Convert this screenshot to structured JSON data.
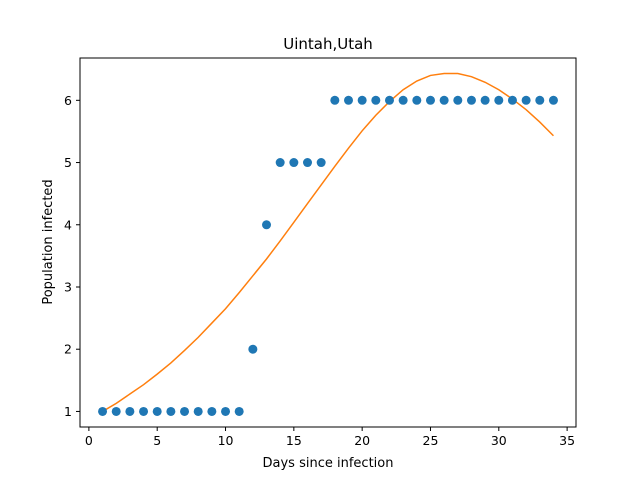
{
  "chart_data": {
    "type": "scatter",
    "title": "Uintah,Utah",
    "xlabel": "Days since infection",
    "ylabel": "Population infected",
    "xlim": [
      -0.65,
      35.65
    ],
    "ylim": [
      0.75,
      6.68
    ],
    "xticks": [
      0,
      5,
      10,
      15,
      20,
      25,
      30,
      35
    ],
    "yticks": [
      1,
      2,
      3,
      4,
      5,
      6
    ],
    "grid": false,
    "legend": "none",
    "colors": {
      "points": "#1f77b4",
      "fit": "#ff7f0e"
    },
    "series": [
      {
        "type": "scatter",
        "x": [
          1,
          2,
          3,
          4,
          5,
          6,
          7,
          8,
          9,
          10,
          11,
          12,
          13,
          14,
          15,
          16,
          17,
          18,
          19,
          20,
          21,
          22,
          23,
          24,
          25,
          26,
          27,
          28,
          29,
          30,
          31,
          32,
          33,
          34
        ],
        "y": [
          1,
          1,
          1,
          1,
          1,
          1,
          1,
          1,
          1,
          1,
          1,
          2,
          4,
          5,
          5,
          5,
          5,
          6,
          6,
          6,
          6,
          6,
          6,
          6,
          6,
          6,
          6,
          6,
          6,
          6,
          6,
          6,
          6,
          6
        ]
      },
      {
        "type": "line",
        "x": [
          1,
          2,
          3,
          4,
          5,
          6,
          7,
          8,
          9,
          10,
          11,
          12,
          13,
          14,
          15,
          16,
          17,
          18,
          19,
          20,
          21,
          22,
          23,
          24,
          25,
          26,
          27,
          28,
          29,
          30,
          31,
          32,
          33,
          34
        ],
        "y": [
          1.0,
          1.13,
          1.28,
          1.43,
          1.6,
          1.78,
          1.98,
          2.19,
          2.42,
          2.65,
          2.91,
          3.18,
          3.45,
          3.74,
          4.04,
          4.34,
          4.64,
          4.94,
          5.23,
          5.51,
          5.76,
          5.98,
          6.17,
          6.31,
          6.4,
          6.43,
          6.43,
          6.38,
          6.29,
          6.17,
          6.02,
          5.85,
          5.65,
          5.43
        ]
      }
    ]
  }
}
